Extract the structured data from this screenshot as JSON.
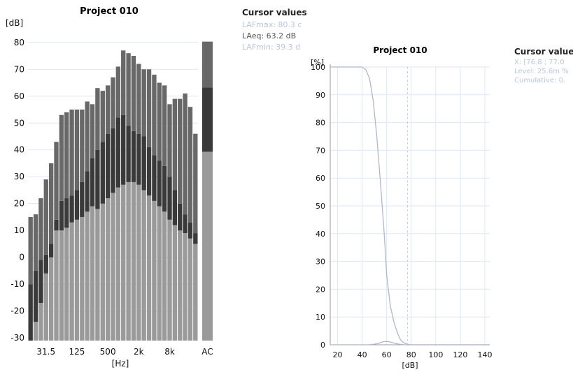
{
  "chart_data": [
    {
      "type": "bar",
      "title": "Project 010",
      "ylabel": "[dB]",
      "xlabel": "[Hz]",
      "ylim": [
        -31,
        88
      ],
      "y_ticks": [
        "80",
        "70",
        "60",
        "50",
        "40",
        "30",
        "20",
        "10",
        "0",
        "-10",
        "-20",
        "-30"
      ],
      "x_tick_labels": [
        "31.5",
        "125",
        "500",
        "2k",
        "8k"
      ],
      "x_tick_bands": [
        3,
        9,
        15,
        21,
        27
      ],
      "extra_band_label": "AC",
      "series": [
        {
          "values": [
            -31,
            -24,
            -17,
            -6,
            0,
            10,
            10,
            11,
            13,
            14,
            15,
            17,
            19,
            18,
            20,
            22,
            24,
            26,
            27,
            28,
            28,
            27,
            25,
            23,
            21,
            19,
            17,
            14,
            12,
            10,
            9,
            7,
            5
          ]
        },
        {
          "values": [
            -10,
            -5,
            -1,
            1,
            5,
            14,
            21,
            22,
            23,
            25,
            28,
            32,
            37,
            40,
            43,
            46,
            48,
            52,
            53,
            49,
            47,
            46,
            45,
            41,
            38,
            36,
            34,
            30,
            25,
            20,
            16,
            13,
            9
          ]
        },
        {
          "values": [
            15,
            16,
            22,
            29,
            35,
            43,
            53,
            54,
            55,
            55,
            55,
            58,
            57,
            63,
            62,
            64,
            67,
            71,
            77,
            76,
            75,
            72,
            70,
            70,
            68,
            65,
            64,
            57,
            59,
            59,
            61,
            56,
            46
          ]
        }
      ],
      "broadband": [
        {
          "label": "LAFmin",
          "value": 39.3
        },
        {
          "label": "LAeq",
          "value": 63.2
        },
        {
          "label": "LAFmax",
          "value": 80.3
        }
      ]
    },
    {
      "type": "line",
      "title": "Project 010",
      "ylabel": "[%]",
      "xlabel": "[dB]",
      "xlim": [
        14,
        144
      ],
      "ylim": [
        0,
        100
      ],
      "x_ticks": [
        20,
        40,
        60,
        80,
        100,
        120,
        140
      ],
      "y_ticks": [
        0,
        10,
        20,
        30,
        40,
        50,
        60,
        70,
        80,
        90,
        100
      ],
      "cursor_x": 77,
      "series": [
        {
          "x": [
            14,
            40,
            43,
            46,
            49,
            52,
            55,
            58,
            60,
            63,
            66,
            69,
            71,
            73,
            75,
            77,
            80,
            90,
            110,
            144
          ],
          "y": [
            100,
            100,
            99,
            96,
            88,
            75,
            58,
            40,
            25,
            14,
            8,
            4,
            2,
            1,
            0.5,
            0.2,
            0,
            0,
            0,
            0
          ]
        },
        {
          "x": [
            14,
            40,
            45,
            50,
            54,
            57,
            60,
            63,
            66,
            70,
            75,
            80,
            144
          ],
          "y": [
            0,
            0,
            0,
            0.2,
            0.6,
            1.1,
            1.2,
            1.0,
            0.6,
            0.2,
            0,
            0,
            0
          ]
        }
      ]
    }
  ],
  "left_cursor": {
    "title": "Cursor values",
    "lines": [
      "LAFmax: 80.3 c",
      "LAeq: 63.2 dB",
      "LAFmin: 39.3 d"
    ]
  },
  "right_cursor": {
    "title": "Cursor values",
    "lines": [
      "X: [76.8 ; 77.0",
      "Level: 25.6m %",
      "Cumulative: 0."
    ]
  },
  "colors": {
    "light": "#9a9a9a",
    "mid": "#3a3a3a",
    "top": "#686868",
    "grid": "#dfe7f3",
    "curve": "#aeb8c8",
    "muted_text": "#b9c6de"
  }
}
